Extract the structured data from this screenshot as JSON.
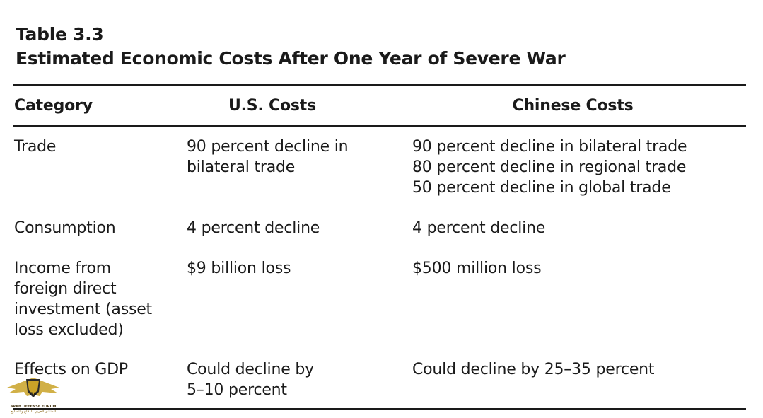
{
  "caption": {
    "label": "Table 3.3",
    "title": "Estimated Economic Costs After One Year of Severe War"
  },
  "headers": {
    "category": "Category",
    "us": "U.S. Costs",
    "cn": "Chinese Costs"
  },
  "rows": [
    {
      "category": [
        "Trade"
      ],
      "us": [
        "90 percent decline in",
        "bilateral trade"
      ],
      "cn": [
        "90 percent decline in bilateral trade",
        "80 percent decline in regional trade",
        "50 percent decline in global trade"
      ]
    },
    {
      "category": [
        "Consumption"
      ],
      "us": [
        "4 percent decline"
      ],
      "cn": [
        "4 percent decline"
      ]
    },
    {
      "category": [
        "Income from",
        "foreign direct",
        "investment (asset",
        "loss excluded)"
      ],
      "us": [
        "$9 billion loss"
      ],
      "cn": [
        "$500 million loss"
      ]
    },
    {
      "category": [
        "Effects on GDP"
      ],
      "us": [
        "Could decline by",
        "5–10 percent"
      ],
      "cn": [
        "Could decline by 25–35 percent"
      ]
    }
  ],
  "watermark": {
    "monogram": "DA",
    "line1": "ARAB DEFENSE FORUM",
    "line2": "المنتدى العربي للدفاع والتسليح",
    "colors": {
      "gold": "#c9a227",
      "dark": "#2b2b2b"
    }
  }
}
